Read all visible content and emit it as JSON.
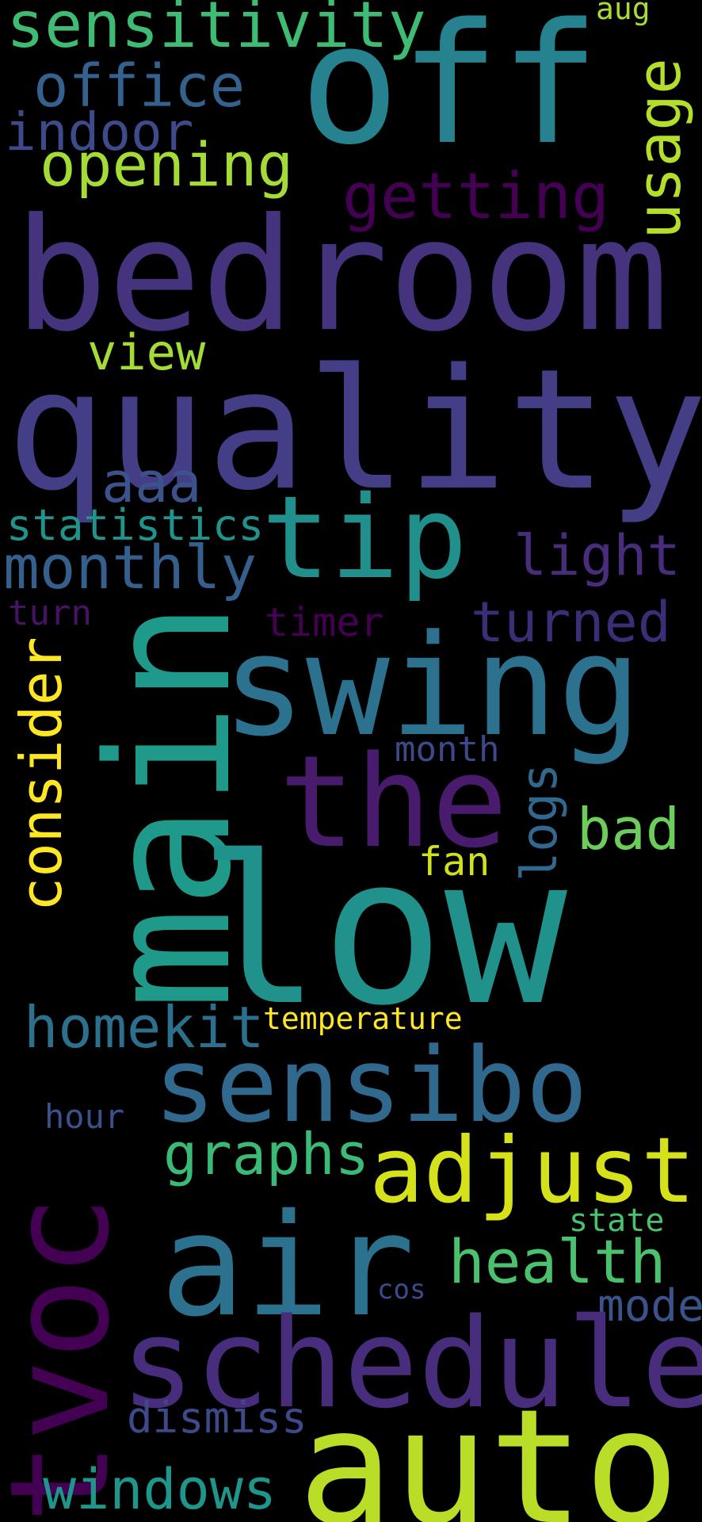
{
  "background": "#000000",
  "words": [
    {
      "id": "sensitivity",
      "text": "sensitivity",
      "color": "#3fbc73"
    },
    {
      "id": "aug",
      "text": "aug",
      "color": "#a8db34"
    },
    {
      "id": "off",
      "text": "off",
      "color": "#26828e"
    },
    {
      "id": "office",
      "text": "office",
      "color": "#34618d"
    },
    {
      "id": "indoor",
      "text": "indoor",
      "color": "#3f4a8a"
    },
    {
      "id": "usage",
      "text": "usage",
      "color": "#b5de2b"
    },
    {
      "id": "opening",
      "text": "opening",
      "color": "#a5db36"
    },
    {
      "id": "getting",
      "text": "getting",
      "color": "#440154"
    },
    {
      "id": "bedroom",
      "text": "bedroom",
      "color": "#46337e"
    },
    {
      "id": "view",
      "text": "view",
      "color": "#a5db36"
    },
    {
      "id": "quality",
      "text": "quality",
      "color": "#433e85"
    },
    {
      "id": "aaa",
      "text": "aaa",
      "color": "#3b528b"
    },
    {
      "id": "statistics",
      "text": "statistics",
      "color": "#1f948c"
    },
    {
      "id": "tip",
      "text": "tip",
      "color": "#21908d"
    },
    {
      "id": "monthly",
      "text": "monthly",
      "color": "#355f8d"
    },
    {
      "id": "light",
      "text": "light",
      "color": "#472d7b"
    },
    {
      "id": "turn",
      "text": "turn",
      "color": "#471365"
    },
    {
      "id": "timer",
      "text": "timer",
      "color": "#440154"
    },
    {
      "id": "turned",
      "text": "turned",
      "color": "#3b2e77"
    },
    {
      "id": "main",
      "text": "main",
      "color": "#1f9a8a"
    },
    {
      "id": "swing",
      "text": "swing",
      "color": "#2c728e"
    },
    {
      "id": "consider",
      "text": "consider",
      "color": "#fde725"
    },
    {
      "id": "month",
      "text": "month",
      "color": "#3e4989"
    },
    {
      "id": "the",
      "text": "the",
      "color": "#481b6d"
    },
    {
      "id": "logs",
      "text": "logs",
      "color": "#31688e"
    },
    {
      "id": "bad",
      "text": "bad",
      "color": "#6ccd5a"
    },
    {
      "id": "fan",
      "text": "fan",
      "color": "#d0e11c"
    },
    {
      "id": "low",
      "text": "low",
      "color": "#21918c"
    },
    {
      "id": "homekit",
      "text": "homekit",
      "color": "#2d708e"
    },
    {
      "id": "temperature",
      "text": "temperature",
      "color": "#fde725"
    },
    {
      "id": "sensibo",
      "text": "sensibo",
      "color": "#31688e"
    },
    {
      "id": "tvoc",
      "text": "tvoc",
      "color": "#440154"
    },
    {
      "id": "hour",
      "text": "hour",
      "color": "#3b518b"
    },
    {
      "id": "graphs",
      "text": "graphs",
      "color": "#3aba76"
    },
    {
      "id": "adjust",
      "text": "adjust",
      "color": "#d5e21a"
    },
    {
      "id": "state",
      "text": "state",
      "color": "#4ac16d"
    },
    {
      "id": "air",
      "text": "air",
      "color": "#2c728e"
    },
    {
      "id": "health",
      "text": "health",
      "color": "#4ac16d"
    },
    {
      "id": "cos",
      "text": "cos",
      "color": "#3e4a89"
    },
    {
      "id": "mode",
      "text": "mode",
      "color": "#3b528b"
    },
    {
      "id": "schedule",
      "text": "schedule",
      "color": "#472d7b"
    },
    {
      "id": "dismiss",
      "text": "dismiss",
      "color": "#3e4989"
    },
    {
      "id": "windows",
      "text": "windows",
      "color": "#1f968b"
    },
    {
      "id": "auto",
      "text": "auto",
      "color": "#bade28"
    }
  ]
}
